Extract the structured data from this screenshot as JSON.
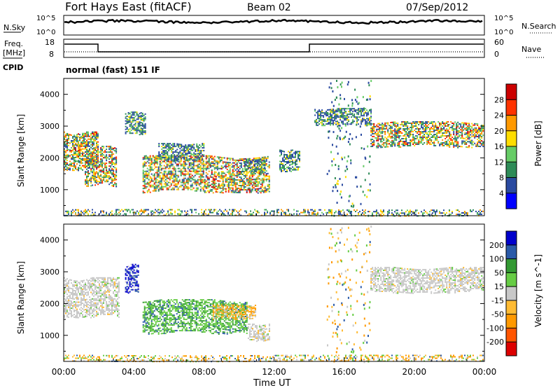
{
  "header": {
    "title": "Fort Hays East (fitACF)",
    "beam": "Beam 02",
    "date": "07/Sep/2012"
  },
  "noise_panel": {
    "left_label": "N.Sky",
    "left_ticks": [
      "10^5",
      "10^0"
    ],
    "right_label": "N.Search",
    "right_ticks": [
      "10^5",
      "10^0"
    ]
  },
  "freq_panel": {
    "left_label_line1": "Freq.",
    "left_label_line2": "[MHz]",
    "left_ticks": [
      "18",
      "8"
    ],
    "right_label": "Nave",
    "right_ticks": [
      "60",
      "0"
    ],
    "cpid_label": "CPID",
    "cpid_text": "normal (fast) 151 IF"
  },
  "chart_data": [
    {
      "type": "heatmap",
      "name": "power",
      "ylabel": "Slant Range [km]",
      "yticks": [
        "4000",
        "3000",
        "2000",
        "1000"
      ],
      "yrange": [
        180,
        4500
      ],
      "xrange_hours": [
        0,
        24
      ],
      "colorbar": {
        "label": "Power [dB]",
        "ticks": [
          "28",
          "24",
          "20",
          "16",
          "12",
          "8",
          "4"
        ],
        "range": [
          0,
          30
        ],
        "colors": [
          "#0000ff",
          "#2a4aa0",
          "#2e8b57",
          "#66cc66",
          "#ffdd00",
          "#ff9900",
          "#ff3300",
          "#cc0000"
        ]
      },
      "echo_regions": [
        {
          "t": [
            0.0,
            2.0
          ],
          "r": [
            1550,
            2900
          ],
          "level": "high"
        },
        {
          "t": [
            1.2,
            3.1
          ],
          "r": [
            1050,
            2450
          ],
          "level": "high"
        },
        {
          "t": [
            3.5,
            4.7
          ],
          "r": [
            2700,
            3500
          ],
          "level": "medium"
        },
        {
          "t": [
            4.5,
            11.8
          ],
          "r": [
            850,
            2150
          ],
          "level": "high"
        },
        {
          "t": [
            5.4,
            8.1
          ],
          "r": [
            1900,
            2500
          ],
          "level": "medium"
        },
        {
          "t": [
            10.3,
            11.5
          ],
          "r": [
            1550,
            2000
          ],
          "level": "medium"
        },
        {
          "t": [
            12.3,
            13.5
          ],
          "r": [
            1550,
            2300
          ],
          "level": "medium"
        },
        {
          "t": [
            14.3,
            17.6
          ],
          "r": [
            3000,
            3600
          ],
          "level": "medium"
        },
        {
          "t": [
            17.5,
            24.0
          ],
          "r": [
            2300,
            3200
          ],
          "level": "high"
        },
        {
          "t": [
            0.0,
            24.0
          ],
          "r": [
            180,
            400
          ],
          "level": "low"
        }
      ]
    },
    {
      "type": "heatmap",
      "name": "velocity",
      "ylabel": "Slant Range [km]",
      "yticks": [
        "4000",
        "3000",
        "2000",
        "1000"
      ],
      "yrange": [
        180,
        4500
      ],
      "xrange_hours": [
        0,
        24
      ],
      "xlabel": "Time UT",
      "xticks": [
        "00:00",
        "04:00",
        "08:00",
        "12:00",
        "16:00",
        "20:00",
        "00:00"
      ],
      "colorbar": {
        "label": "Velocity [m s^-1]",
        "ticks": [
          "200",
          "100",
          "50",
          "15",
          "-15",
          "-50",
          "-100",
          "-200"
        ],
        "range": [
          -250,
          250
        ],
        "colors": [
          "#dd0000",
          "#ff5500",
          "#ff9900",
          "#ffbb33",
          "#c8c8c8",
          "#66cc44",
          "#339933",
          "#2a5aa8",
          "#0000cc"
        ]
      },
      "echo_regions": [
        {
          "t": [
            0.0,
            3.2
          ],
          "r": [
            1500,
            2900
          ],
          "level": "ground"
        },
        {
          "t": [
            3.5,
            4.3
          ],
          "r": [
            2300,
            3300
          ],
          "level": "negative"
        },
        {
          "t": [
            4.5,
            10.5
          ],
          "r": [
            1000,
            2200
          ],
          "level": "positive"
        },
        {
          "t": [
            8.5,
            11.0
          ],
          "r": [
            1500,
            2000
          ],
          "level": "mixed"
        },
        {
          "t": [
            10.5,
            11.8
          ],
          "r": [
            800,
            1400
          ],
          "level": "ground"
        },
        {
          "t": [
            17.5,
            24.0
          ],
          "r": [
            2300,
            3200
          ],
          "level": "ground"
        },
        {
          "t": [
            0.0,
            24.0
          ],
          "r": [
            180,
            400
          ],
          "level": "low-mixed"
        }
      ]
    }
  ]
}
